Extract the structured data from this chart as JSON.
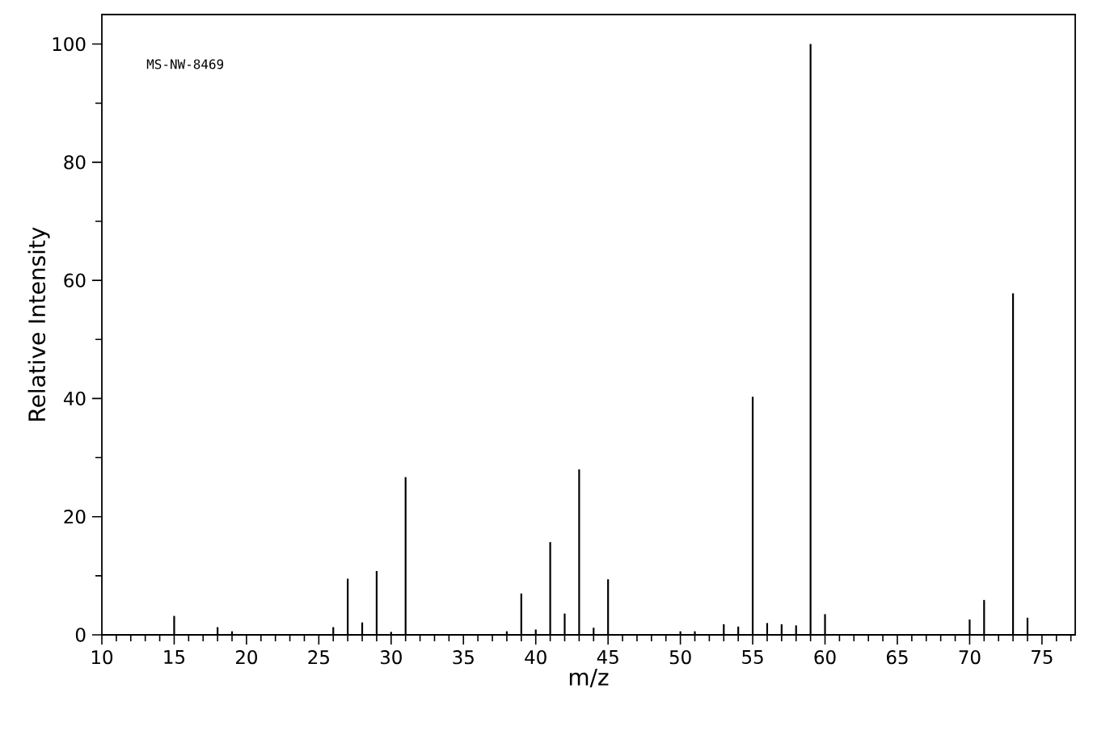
{
  "chart_data": {
    "type": "bar",
    "xlabel": "m/z",
    "ylabel": "Relative Intensity",
    "annotations": [
      "MS-NW-8469"
    ],
    "x": [
      15,
      18,
      19,
      26,
      27,
      28,
      29,
      30,
      31,
      38,
      39,
      40,
      41,
      42,
      43,
      44,
      45,
      50,
      51,
      53,
      54,
      55,
      56,
      57,
      58,
      59,
      60,
      70,
      71,
      73,
      74
    ],
    "values": [
      3.2,
      1.3,
      0.6,
      1.3,
      9.5,
      2.1,
      10.8,
      0.5,
      26.7,
      0.6,
      7.0,
      0.9,
      15.7,
      3.6,
      28.0,
      1.2,
      9.4,
      0.6,
      0.6,
      1.8,
      1.4,
      40.3,
      2.0,
      1.8,
      1.6,
      100,
      3.5,
      2.6,
      5.9,
      57.8,
      2.9
    ],
    "color": "#000000",
    "xlim": [
      10,
      77.3
    ],
    "ylim": [
      0,
      105
    ],
    "xticks": [
      10,
      {
        "value": 11,
        "label": null
      },
      {
        "value": 12,
        "label": null
      },
      {
        "value": 13,
        "label": null
      },
      {
        "value": 14,
        "label": null
      },
      15,
      {
        "value": 16,
        "label": null
      },
      {
        "value": 17,
        "label": null
      },
      {
        "value": 18,
        "label": null
      },
      {
        "value": 19,
        "label": null
      },
      20,
      {
        "value": 21,
        "label": null
      },
      {
        "value": 22,
        "label": null
      },
      {
        "value": 23,
        "label": null
      },
      {
        "value": 24,
        "label": null
      },
      25,
      {
        "value": 26,
        "label": null
      },
      {
        "value": 27,
        "label": null
      },
      {
        "value": 28,
        "label": null
      },
      {
        "value": 29,
        "label": null
      },
      30,
      {
        "value": 31,
        "label": null
      },
      {
        "value": 32,
        "label": null
      },
      {
        "value": 33,
        "label": null
      },
      {
        "value": 34,
        "label": null
      },
      35,
      {
        "value": 36,
        "label": null
      },
      {
        "value": 37,
        "label": null
      },
      {
        "value": 38,
        "label": null
      },
      {
        "value": 39,
        "label": null
      },
      40,
      {
        "value": 41,
        "label": null
      },
      {
        "value": 42,
        "label": null
      },
      {
        "value": 43,
        "label": null
      },
      {
        "value": 44,
        "label": null
      },
      45,
      {
        "value": 46,
        "label": null
      },
      {
        "value": 47,
        "label": null
      },
      {
        "value": 48,
        "label": null
      },
      {
        "value": 49,
        "label": null
      },
      50,
      {
        "value": 51,
        "label": null
      },
      {
        "value": 52,
        "label": null
      },
      {
        "value": 53,
        "label": null
      },
      {
        "value": 54,
        "label": null
      },
      55,
      {
        "value": 56,
        "label": null
      },
      {
        "value": 57,
        "label": null
      },
      {
        "value": 58,
        "label": null
      },
      {
        "value": 59,
        "label": null
      },
      60,
      {
        "value": 61,
        "label": null
      },
      {
        "value": 62,
        "label": null
      },
      {
        "value": 63,
        "label": null
      },
      {
        "value": 64,
        "label": null
      },
      65,
      {
        "value": 66,
        "label": null
      },
      {
        "value": 67,
        "label": null
      },
      {
        "value": 68,
        "label": null
      },
      {
        "value": 69,
        "label": null
      },
      70,
      {
        "value": 71,
        "label": null
      },
      {
        "value": 72,
        "label": null
      },
      {
        "value": 73,
        "label": null
      },
      {
        "value": 74,
        "label": null
      },
      75,
      {
        "value": 76,
        "label": null
      },
      {
        "value": 77,
        "label": null
      }
    ],
    "yticks": [
      0,
      {
        "value": 10,
        "label": null
      },
      20,
      {
        "value": 30,
        "label": null
      },
      40,
      {
        "value": 50,
        "label": null
      },
      60,
      {
        "value": 70,
        "label": null
      },
      80,
      {
        "value": 90,
        "label": null
      },
      100
    ]
  }
}
